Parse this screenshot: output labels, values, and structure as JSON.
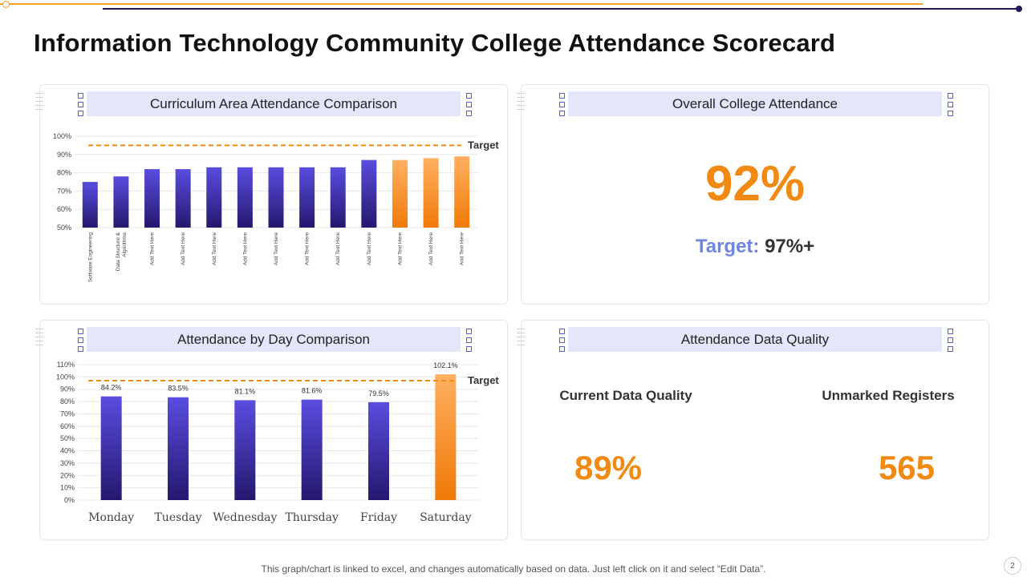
{
  "title": "Information Technology Community College Attendance Scorecard",
  "footer": "This graph/chart is linked to excel,  and changes automatically based on data. Just left click on it and select “Edit Data”.",
  "page_number": "2",
  "colors": {
    "accent_orange": "#f08a12",
    "bar_navy": "#2a1f7a",
    "bar_purple": "#5a4de0",
    "target_blue": "#6f86e0"
  },
  "panels": {
    "curriculum": {
      "title": "Curriculum Area Attendance Comparison",
      "target_label": "Target"
    },
    "overall": {
      "title": "Overall College Attendance",
      "value": "92%",
      "target_label": "Target:",
      "target_value": "97%+"
    },
    "day": {
      "title": "Attendance by Day Comparison",
      "target_label": "Target"
    },
    "quality": {
      "title": "Attendance Data Quality",
      "current_label": "Current Data Quality",
      "current_value": "89%",
      "unmarked_label": "Unmarked Registers",
      "unmarked_value": "565"
    }
  },
  "chart_data": [
    {
      "type": "bar",
      "title": "Curriculum Area Attendance Comparison",
      "categories": [
        "Software Engineering",
        "Data Structure & Algorithms",
        "Add Text Here",
        "Add Text Here",
        "Add Text Here",
        "Add Text Here",
        "Add Text Here",
        "Add Text Here",
        "Add Text Here",
        "Add Text Here",
        "Add Text Here",
        "Add Text Here",
        "Add Text Here"
      ],
      "values": [
        75,
        78,
        82,
        82,
        83,
        83,
        83,
        83,
        83,
        87,
        87,
        88,
        89
      ],
      "highlight_from_index": 10,
      "yticks": [
        "50%",
        "60%",
        "70%",
        "80%",
        "90%",
        "100%"
      ],
      "ylim": [
        50,
        100
      ],
      "target": 95,
      "target_label": "Target"
    },
    {
      "type": "bar",
      "title": "Attendance by Day Comparison",
      "categories": [
        "Monday",
        "Tuesday",
        "Wednesday",
        "Thursday",
        "Friday",
        "Saturday"
      ],
      "values": [
        84.2,
        83.5,
        81.1,
        81.6,
        79.5,
        102.1
      ],
      "data_labels": [
        "84.2%",
        "83.5%",
        "81.1%",
        "81.6%",
        "79.5%",
        "102.1%"
      ],
      "highlight_from_index": 5,
      "yticks": [
        "0%",
        "10%",
        "20%",
        "30%",
        "40%",
        "50%",
        "60%",
        "70%",
        "80%",
        "90%",
        "100%",
        "110%"
      ],
      "ylim": [
        0,
        110
      ],
      "target": 97,
      "target_label": "Target"
    }
  ]
}
